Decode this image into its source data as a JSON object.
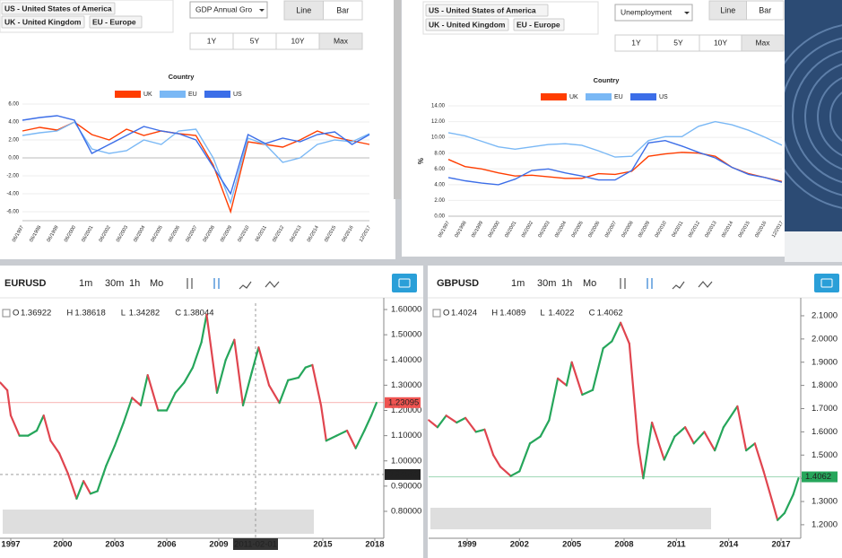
{
  "chart_data": [
    {
      "type": "line",
      "title": "Country",
      "filters": [
        "US - United States of America",
        "UK - United Kingdom",
        "EU - Europe"
      ],
      "indicator": "GDP Annual Gro",
      "modes": [
        "Line",
        "Bar"
      ],
      "ranges": [
        "1Y",
        "5Y",
        "10Y",
        "Max"
      ],
      "categories": [
        "06/1997",
        "06/1998",
        "06/1999",
        "06/2000",
        "06/2001",
        "06/2002",
        "06/2003",
        "06/2004",
        "06/2005",
        "06/2006",
        "06/2007",
        "06/2008",
        "06/2009",
        "06/2010",
        "06/2011",
        "06/2012",
        "06/2013",
        "06/2014",
        "06/2015",
        "06/2016",
        "12/2017"
      ],
      "series": [
        {
          "name": "UK",
          "color": "#ff3d00",
          "values": [
            3.0,
            3.4,
            3.1,
            4.0,
            2.6,
            2.0,
            3.2,
            2.5,
            3.0,
            2.7,
            2.5,
            -0.8,
            -6.0,
            1.8,
            1.5,
            1.2,
            2.0,
            3.0,
            2.3,
            1.9,
            1.5
          ]
        },
        {
          "name": "EU",
          "color": "#7ab8f5",
          "values": [
            2.5,
            2.8,
            3.0,
            4.0,
            1.0,
            0.5,
            0.8,
            2.0,
            1.5,
            3.0,
            3.2,
            0.0,
            -5.0,
            2.2,
            1.5,
            -0.5,
            0.0,
            1.5,
            2.0,
            1.8,
            2.7
          ]
        },
        {
          "name": "US",
          "color": "#3c6ee8",
          "values": [
            4.2,
            4.5,
            4.7,
            4.2,
            0.5,
            1.5,
            2.5,
            3.5,
            3.0,
            2.7,
            2.0,
            -1.0,
            -4.0,
            2.6,
            1.6,
            2.2,
            1.8,
            2.6,
            2.9,
            1.5,
            2.6
          ]
        }
      ],
      "ylim": [
        -7,
        7
      ],
      "yticks": [
        {
          "value": 6,
          "label": "6.00"
        },
        {
          "value": 4,
          "label": "4.00"
        },
        {
          "value": 2,
          "label": "2.00"
        },
        {
          "value": 0,
          "label": "0.00"
        },
        {
          "value": -2,
          "label": "-2.00"
        },
        {
          "value": -4,
          "label": "-4.00"
        },
        {
          "value": -6,
          "label": "-6.00"
        }
      ],
      "grid": true
    },
    {
      "type": "line",
      "title": "Country",
      "y_label": "%",
      "filters": [
        "US - United States of America",
        "UK - United Kingdom",
        "EU - Europe"
      ],
      "indicator": "Unemployment",
      "modes": [
        "Line",
        "Bar"
      ],
      "ranges": [
        "1Y",
        "5Y",
        "10Y",
        "Max"
      ],
      "categories": [
        "06/1997",
        "06/1998",
        "06/1999",
        "06/2000",
        "06/2001",
        "06/2002",
        "06/2003",
        "06/2004",
        "06/2005",
        "06/2006",
        "06/2007",
        "06/2008",
        "06/2009",
        "06/2010",
        "06/2011",
        "06/2012",
        "06/2013",
        "06/2014",
        "06/2015",
        "06/2016",
        "12/2017"
      ],
      "series": [
        {
          "name": "UK",
          "color": "#ff3d00",
          "values": [
            7.2,
            6.3,
            6.0,
            5.5,
            5.1,
            5.2,
            5.0,
            4.8,
            4.8,
            5.4,
            5.3,
            5.7,
            7.6,
            7.9,
            8.1,
            8.0,
            7.6,
            6.2,
            5.4,
            4.9,
            4.4
          ]
        },
        {
          "name": "EU",
          "color": "#7ab8f5",
          "values": [
            10.6,
            10.2,
            9.5,
            8.8,
            8.5,
            8.8,
            9.1,
            9.2,
            9.0,
            8.3,
            7.5,
            7.6,
            9.6,
            10.1,
            10.1,
            11.4,
            12.0,
            11.6,
            10.9,
            10.0,
            9.0
          ]
        },
        {
          "name": "US",
          "color": "#3c6ee8",
          "values": [
            4.9,
            4.5,
            4.2,
            4.0,
            4.7,
            5.8,
            6.0,
            5.5,
            5.1,
            4.6,
            4.6,
            5.8,
            9.3,
            9.6,
            8.9,
            8.1,
            7.4,
            6.2,
            5.3,
            4.9,
            4.3
          ]
        }
      ],
      "ylim": [
        0,
        14
      ],
      "yticks": [
        {
          "value": 14,
          "label": "14.00"
        },
        {
          "value": 12,
          "label": "12.00"
        },
        {
          "value": 10,
          "label": "10.00"
        },
        {
          "value": 8,
          "label": "8.00"
        },
        {
          "value": 6,
          "label": "6.00"
        },
        {
          "value": 4,
          "label": "4.00"
        },
        {
          "value": 2,
          "label": "2.00"
        },
        {
          "value": 0,
          "label": "0.00"
        }
      ],
      "grid": true
    },
    {
      "type": "line",
      "title": "EURUSD",
      "timeframes": [
        "1m",
        "30m",
        "1h",
        "Mo"
      ],
      "ohlc_labels": [
        "O",
        "H",
        "L",
        "C"
      ],
      "ohlc": [
        1.36922,
        1.38618,
        1.34282,
        1.38044
      ],
      "up_color": "#26a65b",
      "down_color": "#e0454f",
      "x": [
        1996.4,
        1996.8,
        1997.0,
        1997.5,
        1998.0,
        1998.5,
        1998.9,
        1999.3,
        1999.8,
        2000.3,
        2000.8,
        2001.2,
        2001.6,
        2002.0,
        2002.5,
        2003.0,
        2003.5,
        2004.0,
        2004.5,
        2004.9,
        2005.5,
        2006.0,
        2006.5,
        2007.0,
        2007.5,
        2008.0,
        2008.3,
        2008.9,
        2009.4,
        2009.9,
        2010.4,
        2010.9,
        2011.3,
        2011.9,
        2012.5,
        2013.0,
        2013.6,
        2014.0,
        2014.4,
        2014.9,
        2015.2,
        2015.8,
        2016.4,
        2016.9,
        2017.4,
        2017.8,
        2018.1
      ],
      "values": [
        1.31,
        1.28,
        1.18,
        1.1,
        1.1,
        1.12,
        1.18,
        1.08,
        1.03,
        0.95,
        0.85,
        0.92,
        0.87,
        0.88,
        0.98,
        1.06,
        1.15,
        1.25,
        1.22,
        1.34,
        1.2,
        1.2,
        1.27,
        1.31,
        1.37,
        1.47,
        1.58,
        1.27,
        1.4,
        1.48,
        1.22,
        1.35,
        1.45,
        1.3,
        1.23,
        1.32,
        1.33,
        1.37,
        1.38,
        1.22,
        1.08,
        1.1,
        1.12,
        1.05,
        1.12,
        1.18,
        1.23
      ],
      "xlim": [
        1996.38,
        2018.52
      ],
      "xticks": [
        1997,
        2000,
        2003,
        2006,
        2009,
        2015,
        2018
      ],
      "crosshair_label": "2011-02-01",
      "ylim": [
        0.711,
        1.625
      ],
      "yticks": [
        {
          "value": 1.6,
          "label": "1.60000"
        },
        {
          "value": 1.5,
          "label": "1.50000"
        },
        {
          "value": 1.4,
          "label": "1.40000"
        },
        {
          "value": 1.3,
          "label": "1.30000"
        },
        {
          "value": 1.2,
          "label": "1.20000"
        },
        {
          "value": 1.1,
          "label": "1.10000"
        },
        {
          "value": 1.0,
          "label": "1.00000"
        },
        {
          "value": 0.9,
          "label": "0.90000"
        },
        {
          "value": 0.8,
          "label": "0.80000"
        }
      ],
      "price_lines": [
        {
          "value": 1.23095,
          "color": "#ef5350"
        },
        {
          "value": 0.94589,
          "color": "#222222"
        }
      ]
    },
    {
      "type": "line",
      "title": "GBPUSD",
      "timeframes": [
        "1m",
        "30m",
        "1h",
        "Mo"
      ],
      "ohlc_labels": [
        "O",
        "H",
        "L",
        "C"
      ],
      "ohlc": [
        1.4024,
        1.4089,
        1.4022,
        1.4062
      ],
      "up_color": "#26a65b",
      "down_color": "#e0454f",
      "x": [
        1996.8,
        1997.3,
        1997.8,
        1998.4,
        1998.9,
        1999.5,
        2000.0,
        2000.5,
        2000.9,
        2001.5,
        2002.0,
        2002.6,
        2003.2,
        2003.7,
        2004.2,
        2004.7,
        2005.0,
        2005.6,
        2006.2,
        2006.8,
        2007.3,
        2007.8,
        2008.3,
        2008.8,
        2009.1,
        2009.6,
        2010.3,
        2010.9,
        2011.5,
        2012.0,
        2012.6,
        2013.2,
        2013.7,
        2014.5,
        2015.0,
        2015.5,
        2016.0,
        2016.5,
        2016.8,
        2017.2,
        2017.7,
        2018.0
      ],
      "values": [
        1.65,
        1.62,
        1.67,
        1.64,
        1.66,
        1.6,
        1.61,
        1.5,
        1.45,
        1.41,
        1.43,
        1.55,
        1.58,
        1.65,
        1.83,
        1.8,
        1.9,
        1.76,
        1.78,
        1.96,
        1.99,
        2.07,
        1.98,
        1.55,
        1.4,
        1.64,
        1.48,
        1.58,
        1.62,
        1.55,
        1.6,
        1.52,
        1.62,
        1.71,
        1.52,
        1.55,
        1.43,
        1.3,
        1.22,
        1.25,
        1.33,
        1.4
      ],
      "xlim": [
        1996.79,
        2018.13
      ],
      "xticks": [
        1999,
        2002,
        2005,
        2008,
        2011,
        2014,
        2017
      ],
      "ylim": [
        1.161,
        2.154
      ],
      "yticks": [
        {
          "value": 2.1,
          "label": "2.1000"
        },
        {
          "value": 2.0,
          "label": "2.0000"
        },
        {
          "value": 1.9,
          "label": "1.9000"
        },
        {
          "value": 1.8,
          "label": "1.8000"
        },
        {
          "value": 1.7,
          "label": "1.7000"
        },
        {
          "value": 1.6,
          "label": "1.6000"
        },
        {
          "value": 1.5,
          "label": "1.5000"
        },
        {
          "value": 1.4,
          "label": "1.4000"
        },
        {
          "value": 1.3,
          "label": "1.3000"
        },
        {
          "value": 1.2,
          "label": "1.2000"
        }
      ],
      "price_lines": [
        {
          "value": 1.4062,
          "color": "#26a65b"
        }
      ]
    }
  ]
}
